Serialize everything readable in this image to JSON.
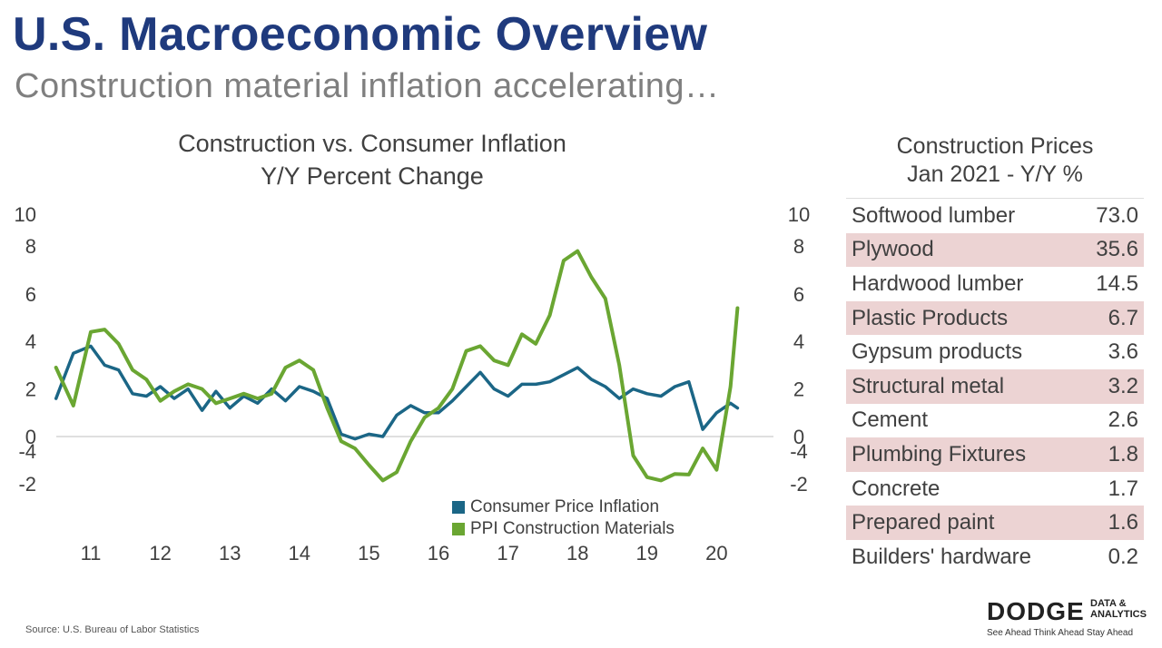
{
  "page": {
    "title": "U.S. Macroeconomic Overview",
    "subtitle": "Construction material inflation accelerating…",
    "source": "Source: U.S. Bureau of Labor Statistics"
  },
  "chart": {
    "title_line1": "Construction vs. Consumer Inflation",
    "title_line2": "Y/Y Percent Change"
  },
  "chart_data": {
    "type": "line",
    "title": "Construction vs. Consumer Inflation Y/Y Percent Change",
    "xlabel": "",
    "ylabel": "",
    "ylim": [
      -4,
      10
    ],
    "x_tick_labels": [
      "11",
      "12",
      "13",
      "14",
      "15",
      "16",
      "17",
      "18",
      "19",
      "20"
    ],
    "y_tick_labels": [
      "10",
      "8",
      "6",
      "4",
      "2",
      "0",
      "-2",
      "-4"
    ],
    "legend_position": "bottom-center",
    "grid": false,
    "x": [
      10.5,
      10.75,
      11,
      11.2,
      11.4,
      11.6,
      11.8,
      12,
      12.2,
      12.4,
      12.6,
      12.8,
      13,
      13.2,
      13.4,
      13.6,
      13.8,
      14,
      14.2,
      14.4,
      14.6,
      14.8,
      15,
      15.2,
      15.4,
      15.6,
      15.8,
      16,
      16.2,
      16.4,
      16.6,
      16.8,
      17,
      17.2,
      17.4,
      17.6,
      17.8,
      18,
      18.2,
      18.4,
      18.6,
      18.8,
      19,
      19.2,
      19.4,
      19.6,
      19.8,
      20,
      20.2,
      20.3
    ],
    "series": [
      {
        "name": "Consumer Price Inflation",
        "color": "#1b6686",
        "values": [
          1.6,
          3.5,
          3.8,
          3.0,
          2.8,
          1.8,
          1.7,
          2.1,
          1.6,
          2.0,
          1.1,
          1.9,
          1.2,
          1.7,
          1.4,
          2.0,
          1.5,
          2.1,
          1.9,
          1.6,
          0.1,
          -0.1,
          0.1,
          0.0,
          0.9,
          1.3,
          1.0,
          1.0,
          1.5,
          2.1,
          2.7,
          2.0,
          1.7,
          2.2,
          2.2,
          2.3,
          2.6,
          2.9,
          2.4,
          2.1,
          1.6,
          2.0,
          1.8,
          1.7,
          2.1,
          2.3,
          0.3,
          1.0,
          1.4,
          1.2
        ]
      },
      {
        "name": "PPI Construction Materials",
        "color": "#6aa632",
        "values": [
          2.9,
          1.3,
          4.4,
          4.5,
          3.9,
          2.8,
          2.4,
          1.5,
          1.9,
          2.2,
          2.0,
          1.4,
          1.6,
          1.8,
          1.6,
          1.8,
          2.9,
          3.2,
          2.8,
          1.2,
          -0.2,
          -0.5,
          -1.2,
          -2.2,
          -1.5,
          -0.2,
          0.8,
          1.2,
          2.0,
          3.6,
          3.8,
          3.2,
          3.0,
          4.3,
          3.9,
          5.1,
          7.4,
          7.8,
          6.7,
          5.8,
          3.0,
          -0.8,
          -2.4,
          -2.2,
          -2.6,
          -1.6,
          -0.5,
          -1.4,
          2.1,
          5.4
        ]
      }
    ]
  },
  "table": {
    "title_line1": "Construction Prices",
    "title_line2": "Jan 2021 - Y/Y %",
    "rows": [
      {
        "label": "Softwood lumber",
        "value": "73.0"
      },
      {
        "label": "Plywood",
        "value": "35.6"
      },
      {
        "label": "Hardwood lumber",
        "value": "14.5"
      },
      {
        "label": "Plastic Products",
        "value": "6.7"
      },
      {
        "label": "Gypsum products",
        "value": "3.6"
      },
      {
        "label": "Structural metal",
        "value": "3.2"
      },
      {
        "label": "Cement",
        "value": "2.6"
      },
      {
        "label": "Plumbing Fixtures",
        "value": "1.8"
      },
      {
        "label": "Concrete",
        "value": "1.7"
      },
      {
        "label": "Prepared paint",
        "value": "1.6"
      },
      {
        "label": "Builders' hardware",
        "value": "0.2"
      }
    ]
  },
  "logo": {
    "name": "DODGE",
    "side_line1": "DATA &",
    "side_line2": "ANALYTICS",
    "tagline": "See Ahead   Think Ahead   Stay Ahead"
  }
}
